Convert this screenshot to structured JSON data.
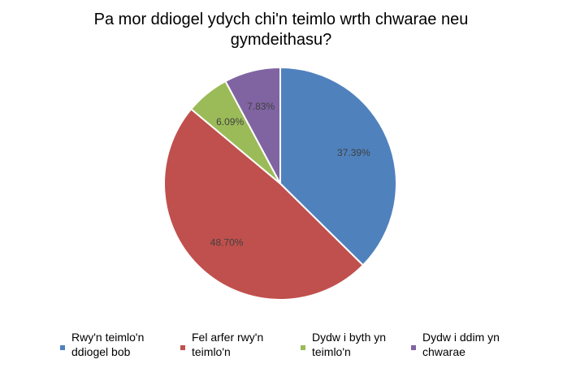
{
  "chart_data": {
    "type": "pie",
    "title_lines": [
      "Pa mor ddiogel ydych chi'n teimlo wrth chwarae neu",
      "gymdeithasu?"
    ],
    "slices": [
      {
        "label_lines": [
          "Rwy'n teimlo'n",
          "ddiogel bob"
        ],
        "value": 37.39,
        "value_label": "37.39%",
        "color": "#4F81BD"
      },
      {
        "label_lines": [
          "Fel arfer rwy'n",
          "teimlo'n"
        ],
        "value": 48.7,
        "value_label": "48.70%",
        "color": "#C0504D"
      },
      {
        "label_lines": [
          "Dydw i byth yn",
          "teimlo'n"
        ],
        "value": 6.09,
        "value_label": "6.09%",
        "color": "#9BBB59"
      },
      {
        "label_lines": [
          "Dydw i ddim yn",
          "chwarae"
        ],
        "value": 7.83,
        "value_label": "7.83%",
        "color": "#8064A2"
      }
    ],
    "legend_position": "bottom",
    "start_angle": "12 o'clock",
    "direction": "clockwise"
  }
}
